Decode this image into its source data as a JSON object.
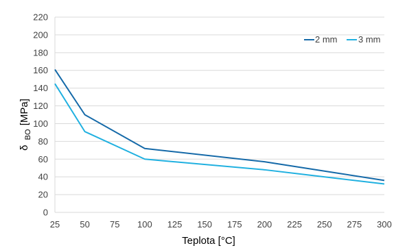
{
  "chart_data": {
    "type": "line",
    "x": [
      25,
      50,
      100,
      200,
      300
    ],
    "xlim": [
      25,
      300
    ],
    "ylim": [
      0,
      220
    ],
    "x_ticks": [
      "25",
      "50",
      "75",
      "100",
      "125",
      "150",
      "175",
      "200",
      "225",
      "250",
      "275",
      "300"
    ],
    "y_ticks": [
      "0",
      "20",
      "40",
      "60",
      "80",
      "100",
      "120",
      "140",
      "160",
      "180",
      "200",
      "220"
    ],
    "xlabel": "Teplota [°C]",
    "ylabel": "δ_BO [MPa]",
    "ylabel_parts": {
      "symbol": "δ",
      "subscript": "BO",
      "unit": "[MPa]"
    },
    "series": [
      {
        "name": "2 mm",
        "color": "#1469a8",
        "values": [
          161,
          110,
          72,
          57,
          36
        ]
      },
      {
        "name": "3 mm",
        "color": "#1fb0e0",
        "values": [
          145,
          91,
          60,
          48,
          32
        ]
      }
    ],
    "grid": true,
    "legend_position": "top-right",
    "colors": {
      "grid": "#d9d9d9",
      "axis": "#d9d9d9",
      "text": "#404040"
    }
  }
}
